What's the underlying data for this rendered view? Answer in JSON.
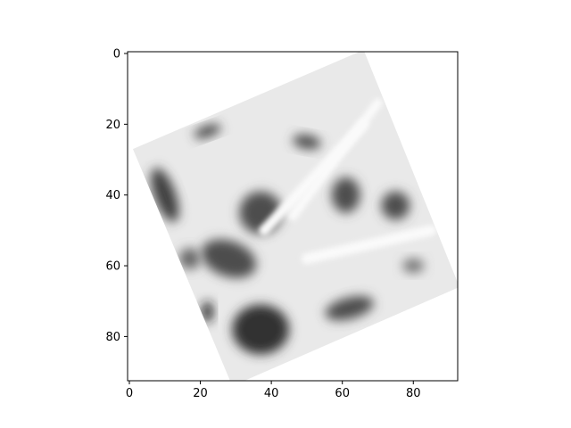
{
  "chart_data": {
    "type": "heatmap",
    "title": "",
    "xlabel": "",
    "ylabel": "",
    "colormap": "gray",
    "image_shape": [
      93,
      93
    ],
    "xlim": [
      -0.5,
      92.5
    ],
    "ylim": [
      92.5,
      -0.5
    ],
    "x_ticks": [
      0,
      20,
      40,
      60,
      80
    ],
    "y_ticks": [
      0,
      20,
      40,
      60,
      80
    ],
    "x_tick_labels": [
      "0",
      "20",
      "40",
      "60",
      "80"
    ],
    "y_tick_labels": [
      "0",
      "20",
      "40",
      "60",
      "80"
    ],
    "content": "rotated square grayscale texture patch (about 26 degrees) on a white background",
    "patch_corners": [
      [
        66,
        -1
      ],
      [
        93,
        66
      ],
      [
        29,
        94
      ],
      [
        1,
        27
      ]
    ],
    "dark_regions": [
      {
        "x": 22,
        "y": 22,
        "rx": 4,
        "ry": 1.5,
        "rot": -20,
        "level": 0.25
      },
      {
        "x": 50,
        "y": 25,
        "rx": 4,
        "ry": 2,
        "rot": 10,
        "level": 0.3
      },
      {
        "x": 61,
        "y": 40,
        "rx": 4,
        "ry": 5,
        "rot": 0,
        "level": 0.3
      },
      {
        "x": 75,
        "y": 43,
        "rx": 4,
        "ry": 4,
        "rot": 0,
        "level": 0.3
      },
      {
        "x": 37,
        "y": 45,
        "rx": 6,
        "ry": 6,
        "rot": -30,
        "level": 0.3
      },
      {
        "x": 10,
        "y": 40,
        "rx": 3,
        "ry": 8,
        "rot": -20,
        "level": 0.25
      },
      {
        "x": 28,
        "y": 58,
        "rx": 8,
        "ry": 5,
        "rot": 20,
        "level": 0.3
      },
      {
        "x": 37,
        "y": 78,
        "rx": 8,
        "ry": 7,
        "rot": 0,
        "level": 0.2
      },
      {
        "x": 22,
        "y": 73,
        "rx": 1.5,
        "ry": 3,
        "rot": 0,
        "level": 0.1
      },
      {
        "x": 62,
        "y": 72,
        "rx": 7,
        "ry": 3,
        "rot": -15,
        "level": 0.3
      },
      {
        "x": 80,
        "y": 60,
        "rx": 3,
        "ry": 2,
        "rot": 0,
        "level": 0.45
      },
      {
        "x": 17,
        "y": 58,
        "rx": 3,
        "ry": 3,
        "rot": 0,
        "level": 0.4
      }
    ],
    "light_streaks": [
      {
        "x1": 38,
        "y1": 50,
        "x2": 66,
        "y2": 20,
        "width": 3
      },
      {
        "x1": 46,
        "y1": 46,
        "x2": 70,
        "y2": 14,
        "width": 2.5
      },
      {
        "x1": 50,
        "y1": 58,
        "x2": 85,
        "y2": 50,
        "width": 3
      }
    ]
  }
}
